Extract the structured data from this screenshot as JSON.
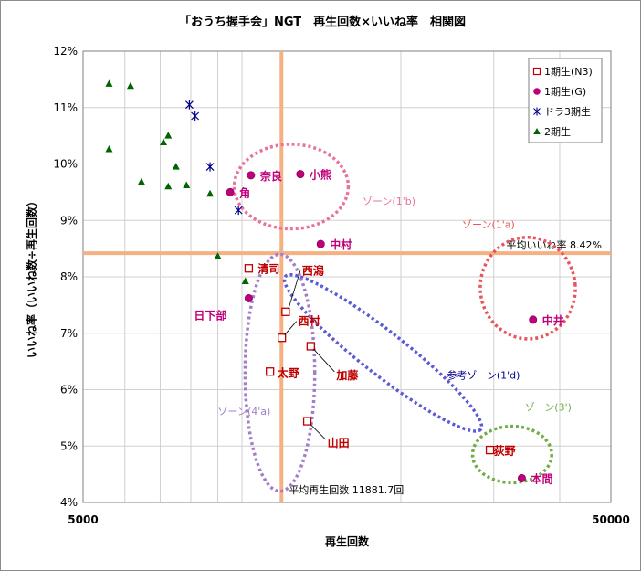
{
  "chart_data": {
    "type": "scatter",
    "title": "「おうち握手会」NGT　再生回数×いいね率　相関図",
    "xlabel": "再生回数",
    "ylabel": "いいね率（いいね数÷再生回数）",
    "xscale": "log",
    "xlim": [
      5000,
      50000
    ],
    "ylim": [
      4,
      12
    ],
    "x_tick_labels": [
      "5000",
      "50000"
    ],
    "y_ticks": [
      4,
      5,
      6,
      7,
      8,
      9,
      10,
      11,
      12
    ],
    "y_tick_labels": [
      "4%",
      "5%",
      "6%",
      "7%",
      "8%",
      "9%",
      "10%",
      "11%",
      "12%"
    ],
    "grid": true,
    "legend_position": "top-right",
    "series": [
      {
        "name": "1期生(N3)",
        "color": "#c00000",
        "marker": "open-square",
        "points": [
          {
            "x": 10300,
            "y": 8.15,
            "label": "清司"
          },
          {
            "x": 12100,
            "y": 7.38,
            "label": "西潟"
          },
          {
            "x": 11900,
            "y": 6.92,
            "label": "西村"
          },
          {
            "x": 13500,
            "y": 6.77,
            "label": "加藤"
          },
          {
            "x": 11300,
            "y": 6.32,
            "label": "太野"
          },
          {
            "x": 13300,
            "y": 5.44,
            "label": "山田"
          },
          {
            "x": 29500,
            "y": 4.93,
            "label": "荻野"
          }
        ]
      },
      {
        "name": "1期生(G)",
        "color": "#c0007a",
        "marker": "circle",
        "points": [
          {
            "x": 10400,
            "y": 9.8,
            "label": "奈良"
          },
          {
            "x": 12900,
            "y": 9.82,
            "label": "小熊"
          },
          {
            "x": 9500,
            "y": 9.5,
            "label": "角"
          },
          {
            "x": 14100,
            "y": 8.58,
            "label": "中村"
          },
          {
            "x": 10300,
            "y": 7.62,
            "label": "日下部"
          },
          {
            "x": 35600,
            "y": 7.24,
            "label": "中井"
          },
          {
            "x": 33900,
            "y": 4.43,
            "label": "本間"
          }
        ]
      },
      {
        "name": "ドラ3期生",
        "color": "#00008b",
        "marker": "asterisk",
        "points": [
          {
            "x": 7950,
            "y": 11.05
          },
          {
            "x": 8150,
            "y": 10.85
          },
          {
            "x": 8700,
            "y": 9.95
          },
          {
            "x": 9850,
            "y": 9.18
          }
        ]
      },
      {
        "name": "2期生",
        "color": "#006400",
        "marker": "triangle",
        "points": [
          {
            "x": 5600,
            "y": 11.42
          },
          {
            "x": 6150,
            "y": 11.38
          },
          {
            "x": 5600,
            "y": 10.26
          },
          {
            "x": 7100,
            "y": 10.38
          },
          {
            "x": 7250,
            "y": 10.5
          },
          {
            "x": 7500,
            "y": 9.95
          },
          {
            "x": 6450,
            "y": 9.68
          },
          {
            "x": 7250,
            "y": 9.6
          },
          {
            "x": 7850,
            "y": 9.62
          },
          {
            "x": 8700,
            "y": 9.47
          },
          {
            "x": 9000,
            "y": 8.36
          },
          {
            "x": 10150,
            "y": 7.92
          }
        ]
      }
    ],
    "reference_lines": [
      {
        "orientation": "horizontal",
        "value": 8.42,
        "label": "平均いいね率  8.42%",
        "color": "#f4b183"
      },
      {
        "orientation": "vertical",
        "value": 11881.7,
        "label": "平均再生回数  11881.7回",
        "color": "#f4b183"
      }
    ],
    "zones": [
      {
        "label": "ゾーン(1'b)",
        "color": "#e8739e",
        "cx": 12400,
        "cy": 9.6,
        "rx": 0.108,
        "ry": 0.75,
        "angle": 0
      },
      {
        "label": "ゾーン(1'a)",
        "color": "#e8545a",
        "cx": 34800,
        "cy": 7.8,
        "rx": 0.09,
        "ry": 0.9,
        "angle": -5
      },
      {
        "label": "参考ゾーン(1'd)",
        "color": "#5b5bd6",
        "cx": 18500,
        "cy": 6.65,
        "rx": 0.235,
        "ry": 0.38,
        "angle": 38
      },
      {
        "label": "ゾーン(4'a)",
        "color": "#a37dc7",
        "cx": 11800,
        "cy": 6.3,
        "rx": 0.066,
        "ry": 2.1,
        "angle": 0
      },
      {
        "label": "ゾーン(3')",
        "color": "#70ad47",
        "cx": 32500,
        "cy": 4.85,
        "rx": 0.075,
        "ry": 0.5,
        "angle": 0
      }
    ]
  }
}
